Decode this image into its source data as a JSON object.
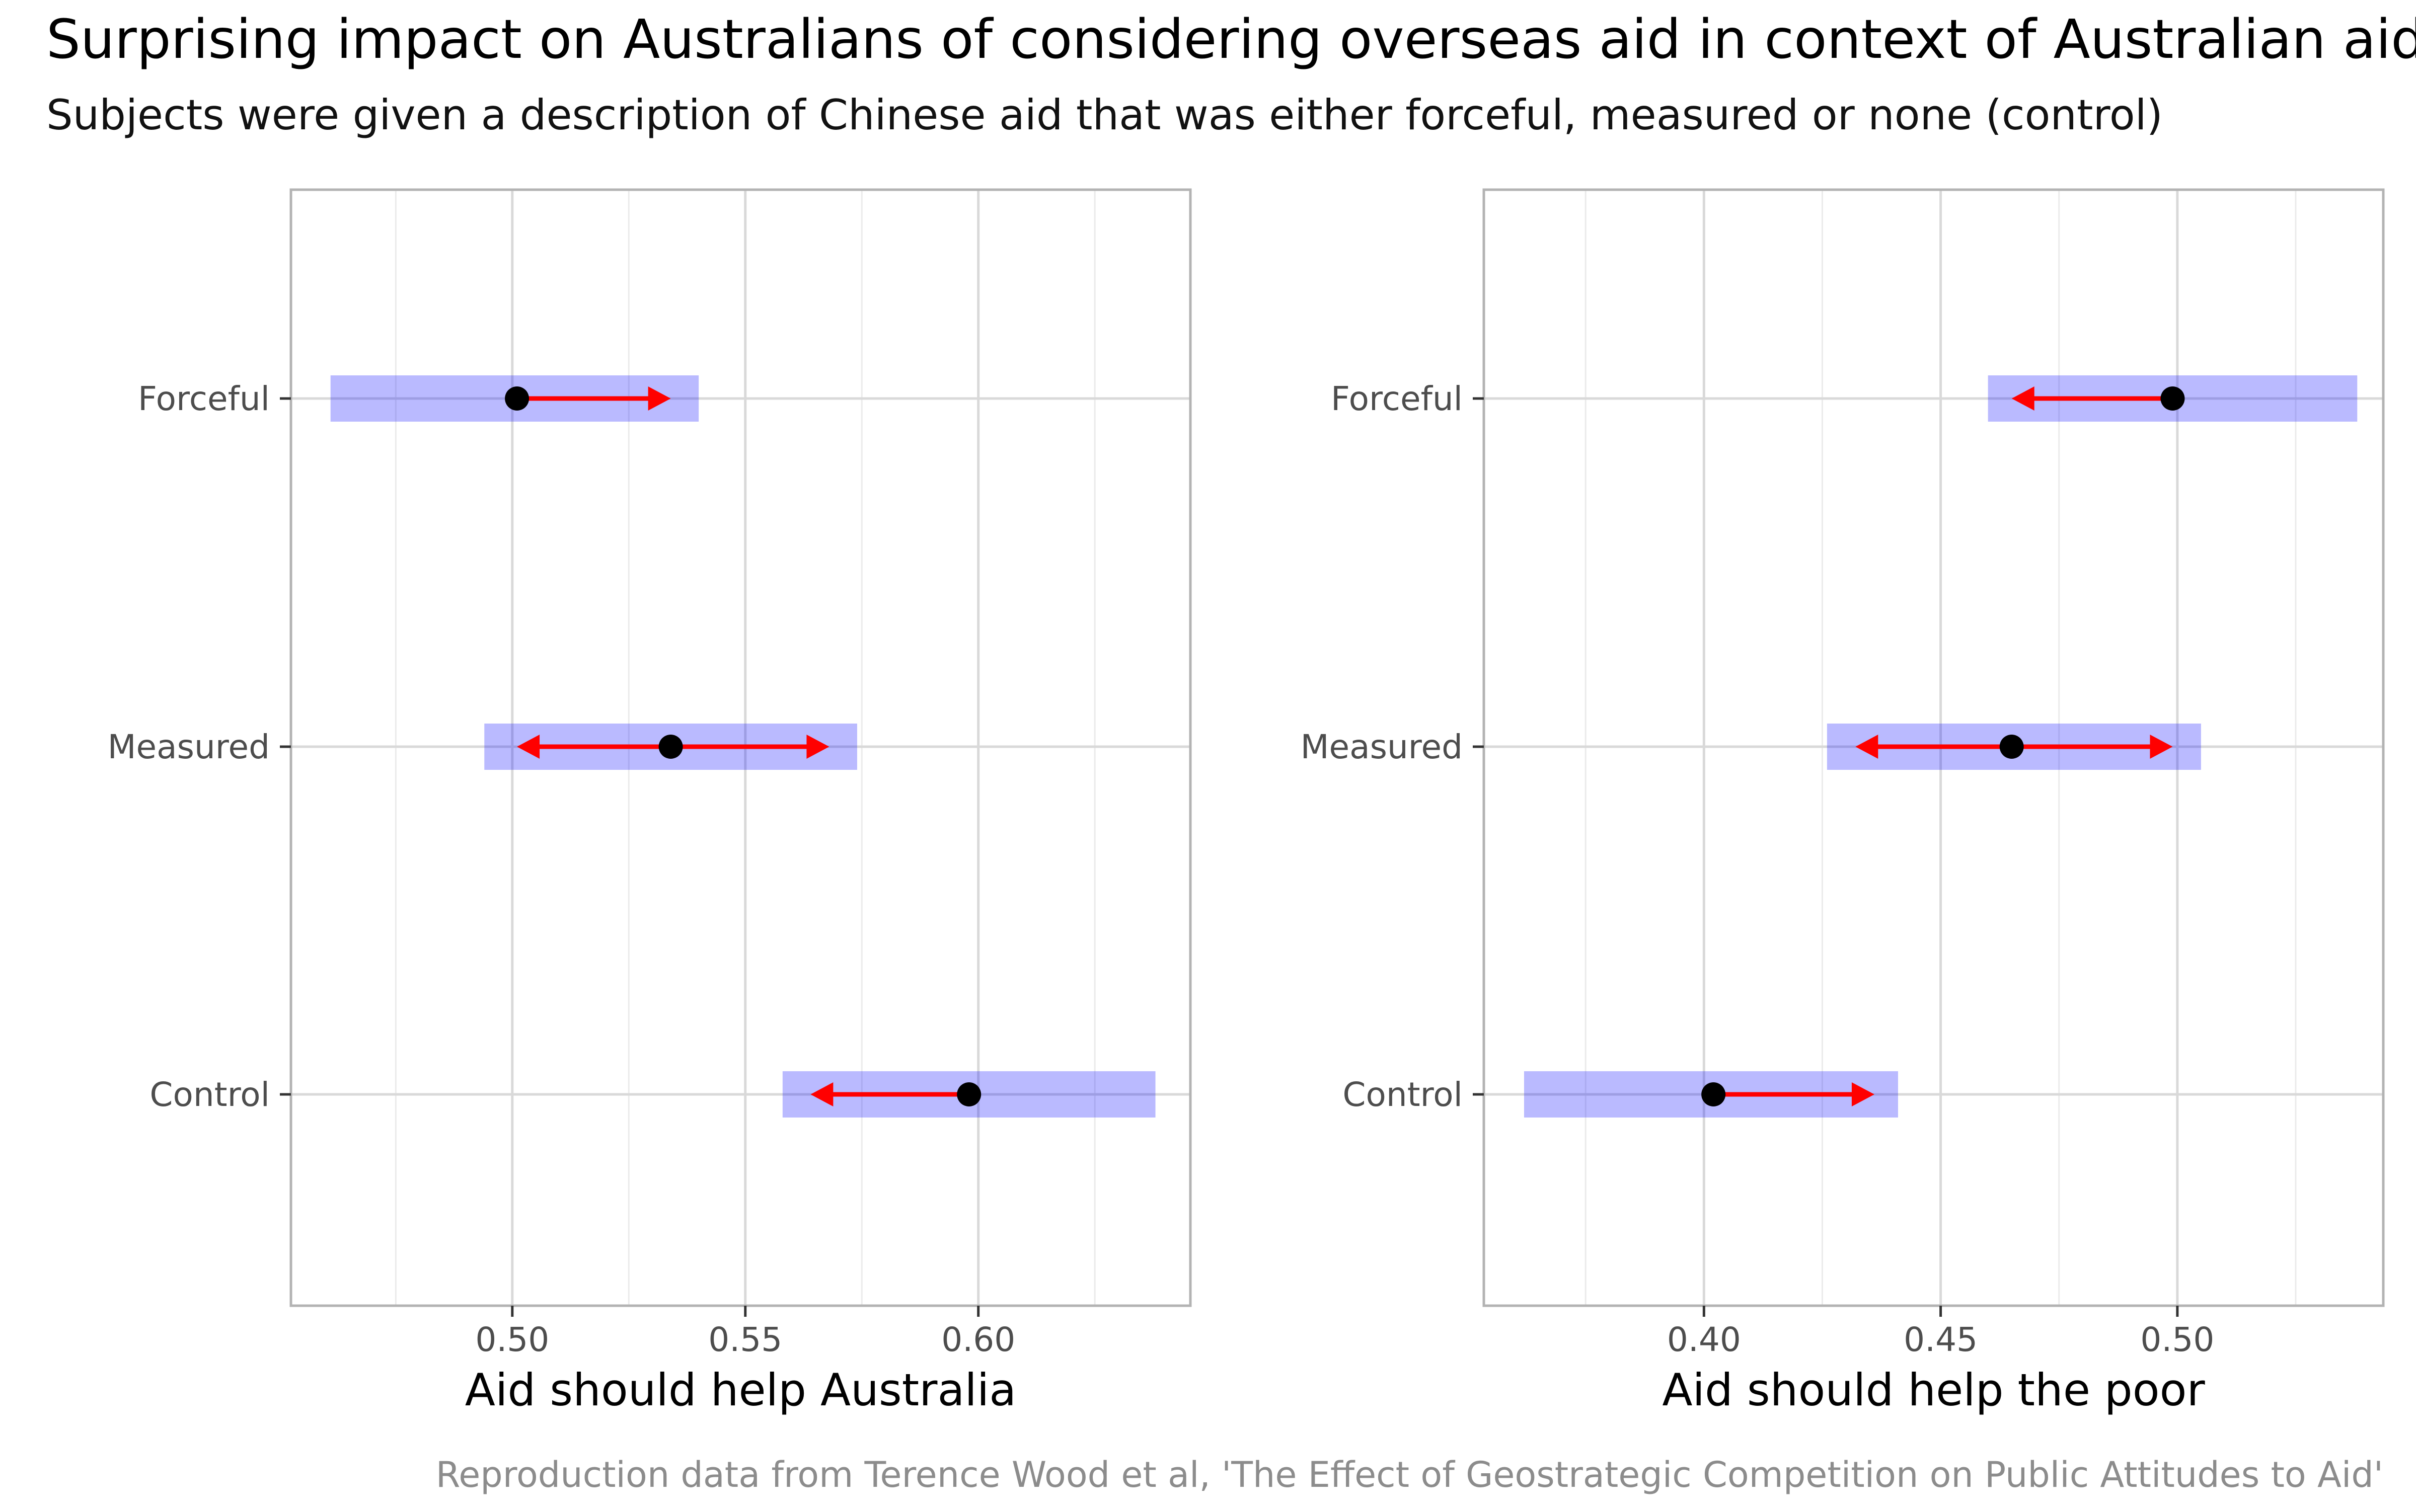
{
  "title": "Surprising impact on Australians of considering overseas aid in context of Australian aid",
  "subtitle": "Subjects were given a description of Chinese aid that was either forceful, measured or none (control)",
  "caption": "Reproduction data from Terence Wood et al, 'The Effect of Geostrategic Competition on Public Attitudes to Aid'",
  "colors": {
    "interval": "#0000ff",
    "arrow": "#ff0000",
    "point": "#000000",
    "grid": "#d9d9d9",
    "border": "#b3b3b3"
  },
  "chart_data": [
    {
      "type": "interval-arrow",
      "xlabel": "Aid should help Australia",
      "categories": [
        "Forceful",
        "Measured",
        "Control"
      ],
      "xlim": [
        0.4525,
        0.6455
      ],
      "ticks": [
        0.5,
        0.55,
        0.6
      ],
      "tick_labels": [
        "0.50",
        "0.55",
        "0.60"
      ],
      "minor_ticks": [
        0.475,
        0.525,
        0.575,
        0.625
      ],
      "grid": true,
      "points": [
        {
          "category": "Forceful",
          "estimate": 0.501,
          "ci_low": 0.461,
          "ci_high": 0.54,
          "arrows_to": [
            0.534
          ]
        },
        {
          "category": "Measured",
          "estimate": 0.534,
          "ci_low": 0.494,
          "ci_high": 0.574,
          "arrows_to": [
            0.501,
            0.568
          ]
        },
        {
          "category": "Control",
          "estimate": 0.598,
          "ci_low": 0.558,
          "ci_high": 0.638,
          "arrows_to": [
            0.564
          ]
        }
      ]
    },
    {
      "type": "interval-arrow",
      "xlabel": "Aid should help the poor",
      "categories": [
        "Forceful",
        "Measured",
        "Control"
      ],
      "xlim": [
        0.3535,
        0.5435
      ],
      "ticks": [
        0.4,
        0.45,
        0.5
      ],
      "tick_labels": [
        "0.40",
        "0.45",
        "0.50"
      ],
      "minor_ticks": [
        0.375,
        0.425,
        0.475,
        0.525
      ],
      "grid": true,
      "points": [
        {
          "category": "Forceful",
          "estimate": 0.499,
          "ci_low": 0.46,
          "ci_high": 0.538,
          "arrows_to": [
            0.465
          ]
        },
        {
          "category": "Measured",
          "estimate": 0.465,
          "ci_low": 0.426,
          "ci_high": 0.505,
          "arrows_to": [
            0.432,
            0.499
          ]
        },
        {
          "category": "Control",
          "estimate": 0.402,
          "ci_low": 0.362,
          "ci_high": 0.441,
          "arrows_to": [
            0.436
          ]
        }
      ]
    }
  ]
}
